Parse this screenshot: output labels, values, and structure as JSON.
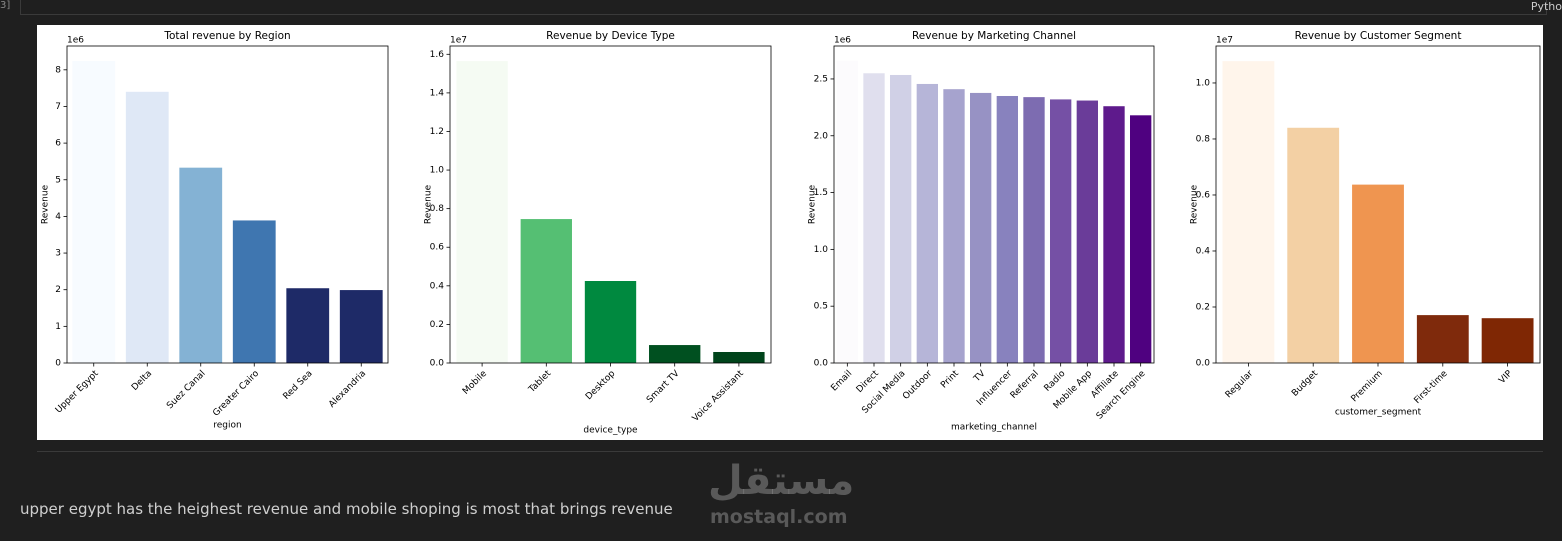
{
  "cell_prompt": "3]",
  "kernel": "Pytho",
  "markdown": "upper egypt has the heighest revenue and mobile shoping is most that brings revenue",
  "watermark": {
    "arabic": "مستقل",
    "site": "mostaql.com"
  },
  "chart_data": [
    {
      "type": "bar",
      "title": "Total revenue by Region",
      "xlabel": "region",
      "ylabel": "Revenue",
      "offset_label": "1e6",
      "categories": [
        "Upper Egypt",
        "Delta",
        "Suez Canal",
        "Greater Cairo",
        "Red Sea",
        "Alexandria"
      ],
      "values": [
        8.24,
        7.4,
        5.33,
        3.89,
        2.04,
        1.99
      ],
      "colors": [
        "#f7fbff",
        "#dfe8f6",
        "#84b2d4",
        "#3f76b0",
        "#1e2a67",
        "#1e2a67"
      ],
      "ylim": [
        0,
        8.65
      ],
      "yticks": [
        0,
        1,
        2,
        3,
        4,
        5,
        6,
        7,
        8
      ]
    },
    {
      "type": "bar",
      "title": "Revenue by Device Type",
      "xlabel": "device_type",
      "ylabel": "Revenue",
      "offset_label": "1e7",
      "categories": [
        "Mobile",
        "Tablet",
        "Desktop",
        "Smart TV",
        "Voice Assistant"
      ],
      "values": [
        1.565,
        0.746,
        0.425,
        0.093,
        0.057
      ],
      "colors": [
        "#f5fbf3",
        "#55bf73",
        "#00893f",
        "#005020",
        "#00441b"
      ],
      "ylim": [
        0,
        1.643
      ],
      "yticks": [
        {
          "value": 0,
          "label": "0.0"
        },
        {
          "value": 0.2,
          "label": "0.2"
        },
        {
          "value": 0.4,
          "label": "0.4"
        },
        {
          "value": 0.6,
          "label": "0.6"
        },
        {
          "value": 0.8,
          "label": "0.8"
        },
        {
          "value": 1,
          "label": "1.0"
        },
        {
          "value": 1.2,
          "label": "1.2"
        },
        {
          "value": 1.4,
          "label": "1.4"
        },
        {
          "value": 1.6,
          "label": "1.6"
        }
      ]
    },
    {
      "type": "bar",
      "title": "Revenue by Marketing Channel",
      "xlabel": "marketing_channel",
      "ylabel": "Revenue",
      "offset_label": "1e6",
      "categories": [
        "Email",
        "Direct",
        "Social Media",
        "Outdoor",
        "Print",
        "TV",
        "Influencer",
        "Referral",
        "Radio",
        "Mobile App",
        "Affiliate",
        "Search Engine"
      ],
      "values": [
        2.66,
        2.55,
        2.535,
        2.456,
        2.41,
        2.377,
        2.35,
        2.34,
        2.32,
        2.31,
        2.26,
        2.18
      ],
      "colors": [
        "#fcfbfd",
        "#e0dfee",
        "#d0d0e6",
        "#b6b5d8",
        "#a6a3ce",
        "#9792c4",
        "#8882be",
        "#7d6cb1",
        "#7550a5",
        "#6a3c99",
        "#5e1a8c",
        "#4f0180"
      ],
      "ylim": [
        0,
        2.79
      ],
      "yticks": [
        {
          "value": 0,
          "label": "0.0"
        },
        {
          "value": 0.5,
          "label": "0.5"
        },
        {
          "value": 1,
          "label": "1.0"
        },
        {
          "value": 1.5,
          "label": "1.5"
        },
        {
          "value": 2,
          "label": "2.0"
        },
        {
          "value": 2.5,
          "label": "2.5"
        }
      ]
    },
    {
      "type": "bar",
      "title": "Revenue by Customer Segment",
      "xlabel": "customer_segment",
      "ylabel": "Revenue",
      "offset_label": "1e7",
      "categories": [
        "Regular",
        "Budget",
        "Premium",
        "First-time",
        "VIP"
      ],
      "values": [
        1.078,
        0.84,
        0.637,
        0.171,
        0.16
      ],
      "colors": [
        "#fff5eb",
        "#f3d0a4",
        "#ef9550",
        "#7f2a0c",
        "#7f2704"
      ],
      "ylim": [
        0,
        1.132
      ],
      "yticks": [
        {
          "value": 0,
          "label": "0.0"
        },
        {
          "value": 0.2,
          "label": "0.2"
        },
        {
          "value": 0.4,
          "label": "0.4"
        },
        {
          "value": 0.6,
          "label": "0.6"
        },
        {
          "value": 0.8,
          "label": "0.8"
        },
        {
          "value": 1,
          "label": "1.0"
        }
      ]
    }
  ]
}
